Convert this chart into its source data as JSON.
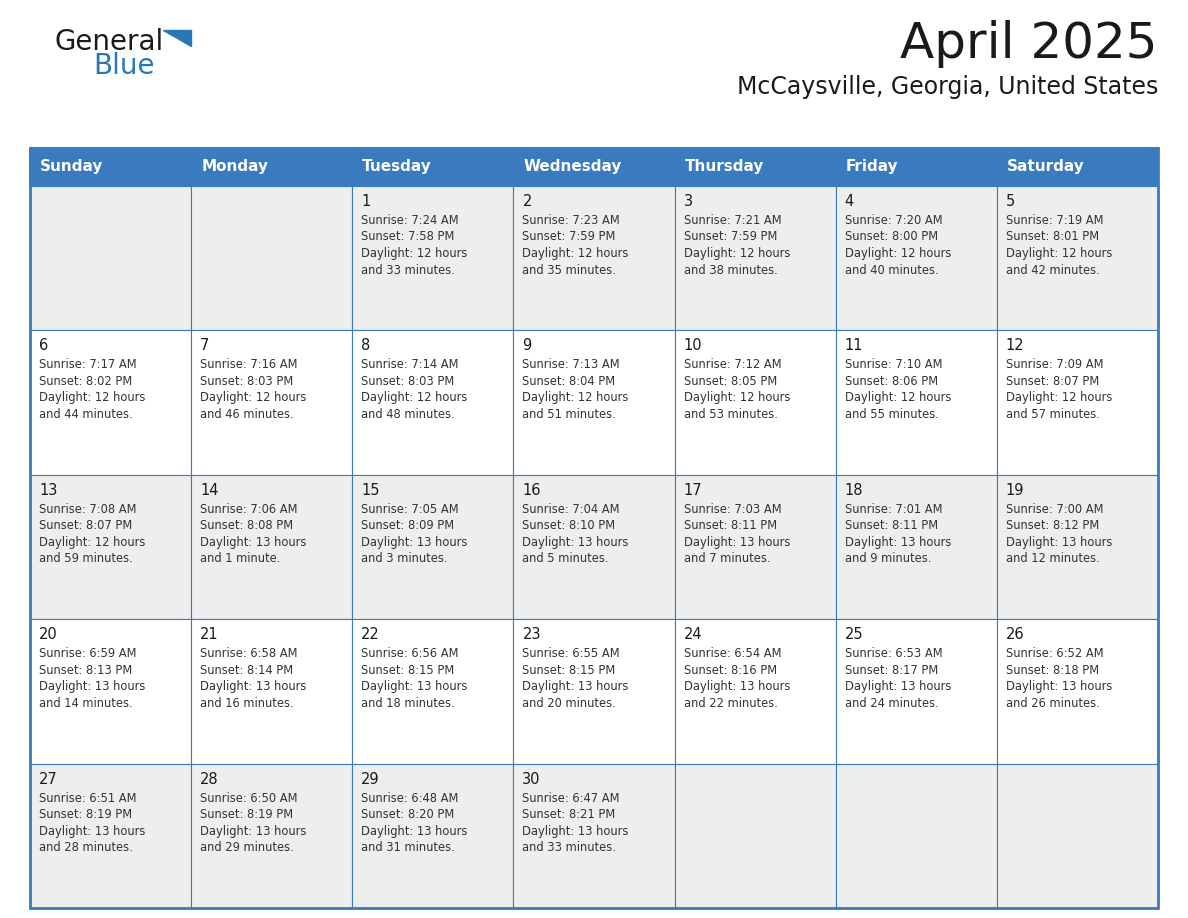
{
  "title": "April 2025",
  "subtitle": "McCaysville, Georgia, United States",
  "header_color": "#3a7abf",
  "header_text_color": "#ffffff",
  "cell_bg_light": "#eeeeee",
  "cell_bg_white": "#ffffff",
  "border_color_outer": "#3a7abf",
  "border_color_inner": "#3a7abf",
  "day_names": [
    "Sunday",
    "Monday",
    "Tuesday",
    "Wednesday",
    "Thursday",
    "Friday",
    "Saturday"
  ],
  "title_color": "#1a1a1a",
  "subtitle_color": "#1a1a1a",
  "days": [
    {
      "day": null,
      "col": 0,
      "row": 0
    },
    {
      "day": null,
      "col": 1,
      "row": 0
    },
    {
      "day": 1,
      "col": 2,
      "row": 0,
      "sunrise": "7:24 AM",
      "sunset": "7:58 PM",
      "daylight": "12 hours and 33 minutes."
    },
    {
      "day": 2,
      "col": 3,
      "row": 0,
      "sunrise": "7:23 AM",
      "sunset": "7:59 PM",
      "daylight": "12 hours and 35 minutes."
    },
    {
      "day": 3,
      "col": 4,
      "row": 0,
      "sunrise": "7:21 AM",
      "sunset": "7:59 PM",
      "daylight": "12 hours and 38 minutes."
    },
    {
      "day": 4,
      "col": 5,
      "row": 0,
      "sunrise": "7:20 AM",
      "sunset": "8:00 PM",
      "daylight": "12 hours and 40 minutes."
    },
    {
      "day": 5,
      "col": 6,
      "row": 0,
      "sunrise": "7:19 AM",
      "sunset": "8:01 PM",
      "daylight": "12 hours and 42 minutes."
    },
    {
      "day": 6,
      "col": 0,
      "row": 1,
      "sunrise": "7:17 AM",
      "sunset": "8:02 PM",
      "daylight": "12 hours and 44 minutes."
    },
    {
      "day": 7,
      "col": 1,
      "row": 1,
      "sunrise": "7:16 AM",
      "sunset": "8:03 PM",
      "daylight": "12 hours and 46 minutes."
    },
    {
      "day": 8,
      "col": 2,
      "row": 1,
      "sunrise": "7:14 AM",
      "sunset": "8:03 PM",
      "daylight": "12 hours and 48 minutes."
    },
    {
      "day": 9,
      "col": 3,
      "row": 1,
      "sunrise": "7:13 AM",
      "sunset": "8:04 PM",
      "daylight": "12 hours and 51 minutes."
    },
    {
      "day": 10,
      "col": 4,
      "row": 1,
      "sunrise": "7:12 AM",
      "sunset": "8:05 PM",
      "daylight": "12 hours and 53 minutes."
    },
    {
      "day": 11,
      "col": 5,
      "row": 1,
      "sunrise": "7:10 AM",
      "sunset": "8:06 PM",
      "daylight": "12 hours and 55 minutes."
    },
    {
      "day": 12,
      "col": 6,
      "row": 1,
      "sunrise": "7:09 AM",
      "sunset": "8:07 PM",
      "daylight": "12 hours and 57 minutes."
    },
    {
      "day": 13,
      "col": 0,
      "row": 2,
      "sunrise": "7:08 AM",
      "sunset": "8:07 PM",
      "daylight": "12 hours and 59 minutes."
    },
    {
      "day": 14,
      "col": 1,
      "row": 2,
      "sunrise": "7:06 AM",
      "sunset": "8:08 PM",
      "daylight": "13 hours and 1 minute."
    },
    {
      "day": 15,
      "col": 2,
      "row": 2,
      "sunrise": "7:05 AM",
      "sunset": "8:09 PM",
      "daylight": "13 hours and 3 minutes."
    },
    {
      "day": 16,
      "col": 3,
      "row": 2,
      "sunrise": "7:04 AM",
      "sunset": "8:10 PM",
      "daylight": "13 hours and 5 minutes."
    },
    {
      "day": 17,
      "col": 4,
      "row": 2,
      "sunrise": "7:03 AM",
      "sunset": "8:11 PM",
      "daylight": "13 hours and 7 minutes."
    },
    {
      "day": 18,
      "col": 5,
      "row": 2,
      "sunrise": "7:01 AM",
      "sunset": "8:11 PM",
      "daylight": "13 hours and 9 minutes."
    },
    {
      "day": 19,
      "col": 6,
      "row": 2,
      "sunrise": "7:00 AM",
      "sunset": "8:12 PM",
      "daylight": "13 hours and 12 minutes."
    },
    {
      "day": 20,
      "col": 0,
      "row": 3,
      "sunrise": "6:59 AM",
      "sunset": "8:13 PM",
      "daylight": "13 hours and 14 minutes."
    },
    {
      "day": 21,
      "col": 1,
      "row": 3,
      "sunrise": "6:58 AM",
      "sunset": "8:14 PM",
      "daylight": "13 hours and 16 minutes."
    },
    {
      "day": 22,
      "col": 2,
      "row": 3,
      "sunrise": "6:56 AM",
      "sunset": "8:15 PM",
      "daylight": "13 hours and 18 minutes."
    },
    {
      "day": 23,
      "col": 3,
      "row": 3,
      "sunrise": "6:55 AM",
      "sunset": "8:15 PM",
      "daylight": "13 hours and 20 minutes."
    },
    {
      "day": 24,
      "col": 4,
      "row": 3,
      "sunrise": "6:54 AM",
      "sunset": "8:16 PM",
      "daylight": "13 hours and 22 minutes."
    },
    {
      "day": 25,
      "col": 5,
      "row": 3,
      "sunrise": "6:53 AM",
      "sunset": "8:17 PM",
      "daylight": "13 hours and 24 minutes."
    },
    {
      "day": 26,
      "col": 6,
      "row": 3,
      "sunrise": "6:52 AM",
      "sunset": "8:18 PM",
      "daylight": "13 hours and 26 minutes."
    },
    {
      "day": 27,
      "col": 0,
      "row": 4,
      "sunrise": "6:51 AM",
      "sunset": "8:19 PM",
      "daylight": "13 hours and 28 minutes."
    },
    {
      "day": 28,
      "col": 1,
      "row": 4,
      "sunrise": "6:50 AM",
      "sunset": "8:19 PM",
      "daylight": "13 hours and 29 minutes."
    },
    {
      "day": 29,
      "col": 2,
      "row": 4,
      "sunrise": "6:48 AM",
      "sunset": "8:20 PM",
      "daylight": "13 hours and 31 minutes."
    },
    {
      "day": 30,
      "col": 3,
      "row": 4,
      "sunrise": "6:47 AM",
      "sunset": "8:21 PM",
      "daylight": "13 hours and 33 minutes."
    },
    {
      "day": null,
      "col": 4,
      "row": 4
    },
    {
      "day": null,
      "col": 5,
      "row": 4
    },
    {
      "day": null,
      "col": 6,
      "row": 4
    }
  ],
  "num_rows": 5,
  "num_cols": 7,
  "logo_text1": "General",
  "logo_text2": "Blue",
  "logo_color1": "#1a1a1a",
  "logo_color2": "#2878b8",
  "logo_triangle_color": "#2878b8"
}
